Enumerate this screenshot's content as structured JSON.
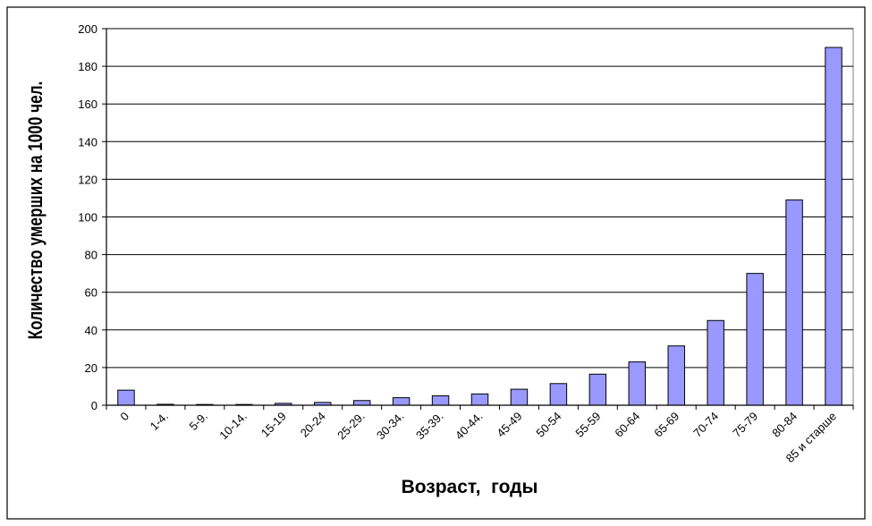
{
  "chart_data": {
    "type": "bar",
    "title": "",
    "xlabel": "Возраст,  годы",
    "ylabel": "Количество умерших на 1000 чел.",
    "categories": [
      "0",
      "1-4.",
      "5-9.",
      "10-14.",
      "15-19",
      "20-24",
      "25-29.",
      "30-34.",
      "35-39.",
      "40-44.",
      "45-49",
      "50-54",
      "55-59",
      "60-64",
      "65-69",
      "70-74",
      "75-79",
      "80-84",
      "85 и старше"
    ],
    "values": [
      8,
      0.5,
      0.4,
      0.4,
      1,
      1.5,
      2.5,
      4,
      5,
      6,
      8.5,
      11.5,
      16.5,
      23,
      31.5,
      45,
      70,
      109,
      190
    ],
    "ylim": [
      0,
      200
    ],
    "yticks": [
      0,
      20,
      40,
      60,
      80,
      100,
      120,
      140,
      160,
      180,
      200
    ],
    "grid": true,
    "legend": "none",
    "colors": {
      "bar_fill": "#9999ff",
      "bar_stroke": "#000000",
      "grid": "#000000",
      "background": "#ffffff"
    }
  }
}
